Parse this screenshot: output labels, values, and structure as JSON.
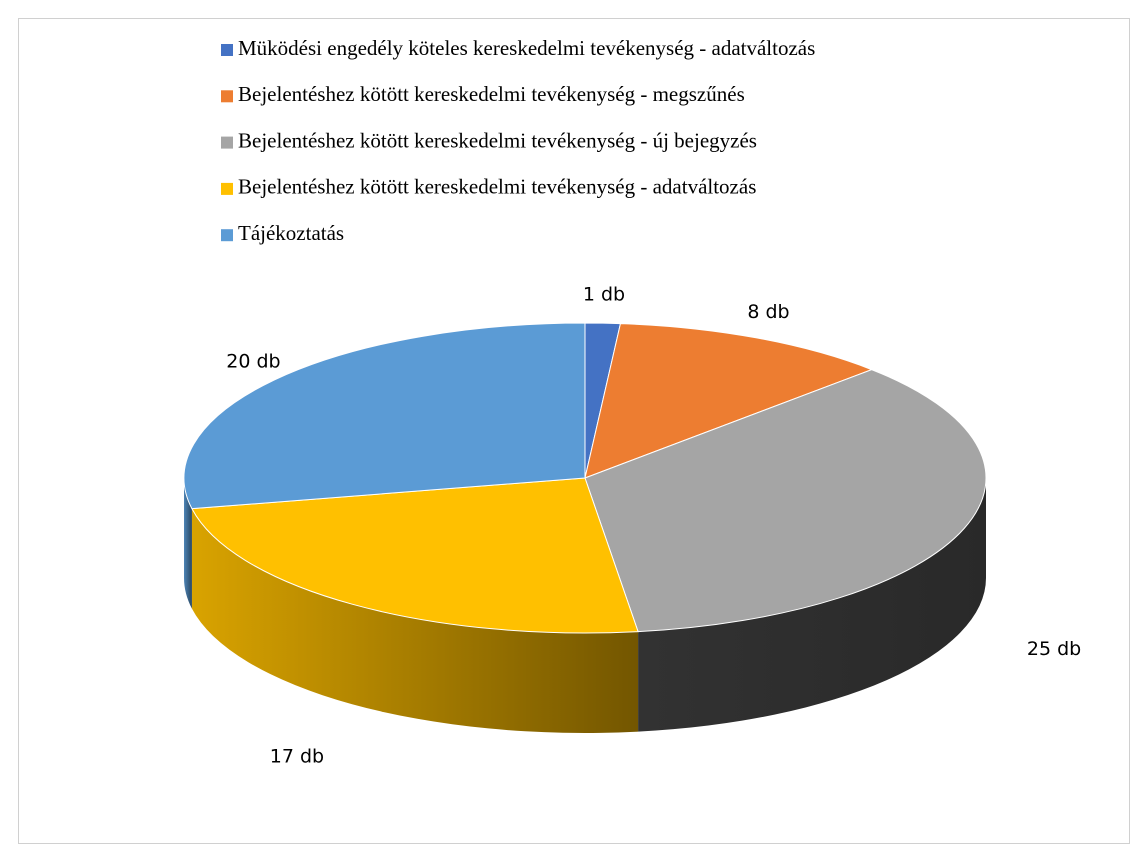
{
  "chart_data": {
    "type": "pie",
    "categories": [
      "Müködési engedély köteles kereskedelmi tevékenység - adatváltozás",
      "Bejelentéshez kötött kereskedelmi tevékenység - megszűnés",
      "Bejelentéshez kötött kereskedelmi tevékenység - új bejegyzés",
      "Bejelentéshez kötött kereskedelmi tevékenység - adatváltozás",
      "Tájékoztatás"
    ],
    "values": [
      1,
      8,
      25,
      17,
      20
    ],
    "value_labels": [
      "1 db",
      "8 db",
      "25 db",
      "17 db",
      "20 db"
    ],
    "colors": [
      "#4472c4",
      "#ed7d31",
      "#a5a5a5",
      "#ffc000",
      "#5b9bd5"
    ],
    "legend": "top"
  }
}
